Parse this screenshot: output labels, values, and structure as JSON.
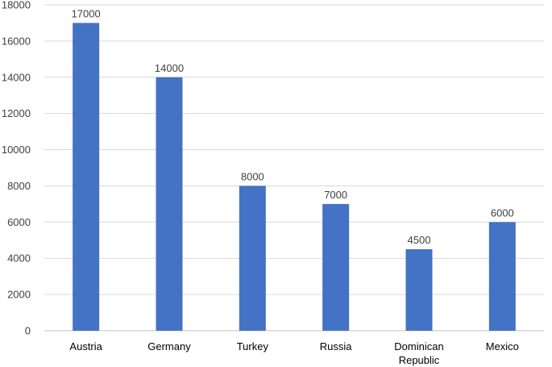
{
  "chart_data": {
    "type": "bar",
    "categories": [
      [
        "Austria"
      ],
      [
        "Germany"
      ],
      [
        "Turkey"
      ],
      [
        "Russia"
      ],
      [
        "Dominican",
        "Republic"
      ],
      [
        "Mexico"
      ]
    ],
    "values": [
      17000,
      14000,
      8000,
      7000,
      4500,
      6000
    ],
    "data_labels": [
      "17000",
      "14000",
      "8000",
      "7000",
      "4500",
      "6000"
    ],
    "y_ticks": [
      "0",
      "2000",
      "4000",
      "6000",
      "8000",
      "10000",
      "12000",
      "14000",
      "16000",
      "18000"
    ],
    "ylim": [
      0,
      18000
    ],
    "title": "",
    "xlabel": "",
    "ylabel": "",
    "grid": true,
    "legend": "none",
    "bar_color": "#4472c4"
  }
}
